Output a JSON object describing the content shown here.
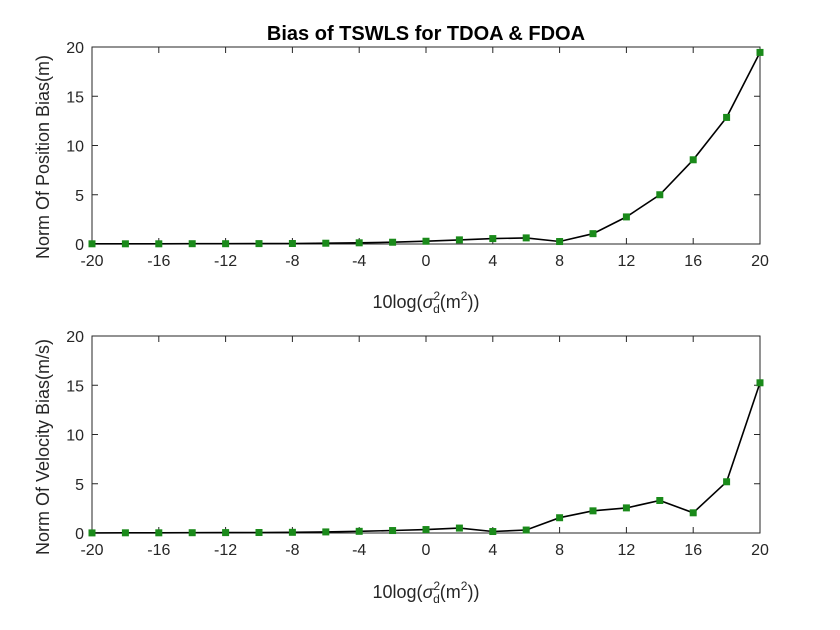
{
  "chart_data": [
    {
      "type": "line",
      "title": "Bias of TSWLS for TDOA & FDOA",
      "xlabel": "10log(σd²(m²))",
      "xlabel_parts": {
        "prefix": "10log(",
        "sigma": "σ",
        "sup": "2",
        "sub": "d",
        "mid": "(m",
        "sup2": "2",
        "suffix": "))"
      },
      "ylabel": "Norm Of Position Bias(m)",
      "xlim": [
        -20,
        20
      ],
      "ylim": [
        0,
        20
      ],
      "xticks": [
        -20,
        -16,
        -12,
        -8,
        -4,
        0,
        4,
        8,
        12,
        16,
        20
      ],
      "yticks": [
        0,
        5,
        10,
        15,
        20
      ],
      "grid": false,
      "series": [
        {
          "color": "#000000",
          "marker_color": "#1a8a1a",
          "x": [
            -20,
            -18,
            -16,
            -14,
            -12,
            -10,
            -8,
            -6,
            -4,
            -2,
            0,
            2,
            4,
            6,
            8,
            10,
            12,
            14,
            16,
            18,
            20
          ],
          "values": [
            0.02,
            0.02,
            0.02,
            0.03,
            0.03,
            0.04,
            0.05,
            0.08,
            0.12,
            0.18,
            0.28,
            0.42,
            0.55,
            0.62,
            0.25,
            1.05,
            2.75,
            5.0,
            8.55,
            12.85,
            19.45
          ]
        }
      ]
    },
    {
      "type": "line",
      "title": "",
      "xlabel": "10log(σd²(m²))",
      "xlabel_parts": {
        "prefix": "10log(",
        "sigma": "σ",
        "sup": "2",
        "sub": "d",
        "mid": "(m",
        "sup2": "2",
        "suffix": "))"
      },
      "ylabel": "Norm Of Velocity Bias(m/s)",
      "xlim": [
        -20,
        20
      ],
      "ylim": [
        0,
        20
      ],
      "xticks": [
        -20,
        -16,
        -12,
        -8,
        -4,
        0,
        4,
        8,
        12,
        16,
        20
      ],
      "yticks": [
        0,
        5,
        10,
        15,
        20
      ],
      "grid": false,
      "series": [
        {
          "color": "#000000",
          "marker_color": "#1a8a1a",
          "x": [
            -20,
            -18,
            -16,
            -14,
            -12,
            -10,
            -8,
            -6,
            -4,
            -2,
            0,
            2,
            4,
            6,
            8,
            10,
            12,
            14,
            16,
            18,
            20
          ],
          "values": [
            0.01,
            0.02,
            0.02,
            0.03,
            0.04,
            0.05,
            0.07,
            0.11,
            0.17,
            0.25,
            0.35,
            0.5,
            0.15,
            0.3,
            1.55,
            2.25,
            2.55,
            3.3,
            2.05,
            5.2,
            15.25
          ]
        }
      ]
    }
  ]
}
